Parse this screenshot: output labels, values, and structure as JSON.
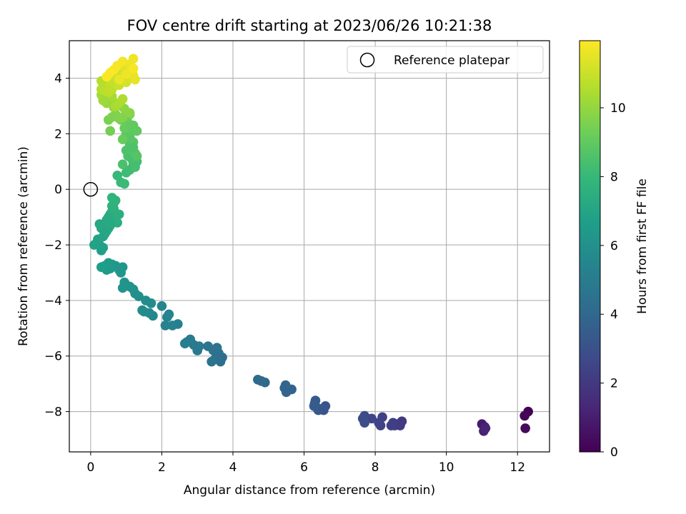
{
  "chart_data": {
    "type": "scatter",
    "title": "FOV centre drift starting at 2023/06/26 10:21:38",
    "xlabel": "Angular distance from reference (arcmin)",
    "ylabel": "Rotation from reference (arcmin)",
    "xlim": [
      -0.6,
      12.9
    ],
    "ylim": [
      -9.45,
      5.35
    ],
    "xticks": [
      0,
      2,
      4,
      6,
      8,
      10,
      12
    ],
    "yticks": [
      -8,
      -6,
      -4,
      -2,
      0,
      2,
      4
    ],
    "grid": true,
    "legend": {
      "position": "top-right",
      "entries": [
        "Reference platepar"
      ]
    },
    "reference_point": {
      "x": 0,
      "y": 0
    },
    "colorbar": {
      "label": "Hours from first FF file",
      "range": [
        0,
        11.95
      ],
      "ticks": [
        0,
        2,
        4,
        6,
        8,
        10
      ],
      "colormap": "viridis"
    },
    "colormap_stops": [
      "#440154",
      "#482878",
      "#3e4989",
      "#31688e",
      "#26828e",
      "#1f9e89",
      "#35b779",
      "#6ece58",
      "#b5de2b",
      "#fde725"
    ],
    "series": [
      {
        "x": [
          12.3,
          12.2,
          12.22,
          11.0,
          11.08,
          11.05,
          11.1
        ],
        "y": [
          -8.0,
          -8.15,
          -8.6,
          -8.45,
          -8.55,
          -8.7,
          -8.6
        ],
        "t": [
          0.0,
          0.15,
          0.3,
          0.9,
          1.0,
          1.1,
          1.2
        ]
      },
      {
        "x": [
          8.75,
          8.7,
          8.6,
          8.55,
          8.5,
          8.45,
          8.2,
          8.15,
          8.1,
          7.9,
          7.7,
          7.68,
          7.65,
          7.7
        ],
        "y": [
          -8.35,
          -8.5,
          -8.45,
          -8.5,
          -8.4,
          -8.5,
          -8.2,
          -8.5,
          -8.4,
          -8.25,
          -8.15,
          -8.3,
          -8.25,
          -8.4
        ],
        "t": [
          2.0,
          2.05,
          2.1,
          2.15,
          2.2,
          2.25,
          2.35,
          2.4,
          2.45,
          2.55,
          2.65,
          2.7,
          2.75,
          2.8
        ]
      },
      {
        "x": [
          6.6,
          6.55,
          6.5,
          6.4,
          6.35,
          6.3,
          6.32,
          6.28,
          5.65,
          5.5,
          5.45,
          5.48,
          4.9,
          4.8,
          4.7
        ],
        "y": [
          -7.8,
          -7.95,
          -7.9,
          -7.95,
          -7.85,
          -7.7,
          -7.6,
          -7.8,
          -7.2,
          -7.3,
          -7.15,
          -7.05,
          -6.95,
          -6.9,
          -6.85
        ],
        "t": [
          3.1,
          3.15,
          3.2,
          3.25,
          3.3,
          3.35,
          3.4,
          3.45,
          3.75,
          3.8,
          3.85,
          3.9,
          4.05,
          4.1,
          4.15
        ]
      },
      {
        "x": [
          3.7,
          3.65,
          3.6,
          3.5,
          3.45,
          3.55,
          3.4,
          3.3,
          3.0,
          3.05,
          2.9,
          2.8,
          2.7,
          2.65,
          2.45,
          2.3,
          2.1,
          2.15,
          2.2,
          2.0
        ],
        "y": [
          -6.05,
          -6.2,
          -5.9,
          -6.1,
          -5.8,
          -5.7,
          -6.2,
          -5.65,
          -5.8,
          -5.65,
          -5.6,
          -5.4,
          -5.5,
          -5.55,
          -4.85,
          -4.9,
          -4.9,
          -4.6,
          -4.5,
          -4.2
        ],
        "t": [
          4.3,
          4.35,
          4.4,
          4.45,
          4.5,
          4.55,
          4.6,
          4.65,
          4.8,
          4.85,
          4.9,
          4.95,
          5.0,
          5.05,
          5.2,
          5.25,
          5.3,
          5.35,
          5.4,
          5.5
        ]
      },
      {
        "x": [
          1.75,
          1.65,
          1.5,
          1.45,
          1.7,
          1.55,
          1.35,
          1.25,
          1.2,
          1.1,
          1.0,
          0.95,
          0.9,
          0.85,
          0.8,
          0.7,
          0.6,
          0.55,
          0.5,
          0.45,
          0.4,
          0.3,
          0.9
        ],
        "y": [
          -4.55,
          -4.45,
          -4.4,
          -4.35,
          -4.1,
          -4.0,
          -3.85,
          -3.75,
          -3.6,
          -3.5,
          -3.45,
          -3.35,
          -3.55,
          -3.0,
          -2.9,
          -2.75,
          -2.7,
          -2.85,
          -2.65,
          -2.9,
          -2.75,
          -2.8,
          -2.8
        ],
        "t": [
          5.6,
          5.65,
          5.7,
          5.75,
          5.8,
          5.85,
          5.9,
          5.95,
          6.0,
          6.05,
          6.1,
          6.15,
          6.2,
          6.25,
          6.3,
          6.35,
          6.4,
          6.45,
          6.5,
          6.55,
          6.6,
          6.65,
          6.25
        ]
      },
      {
        "x": [
          0.3,
          0.35,
          0.25,
          0.1,
          0.2,
          0.35,
          0.4,
          0.3,
          0.25,
          0.35,
          0.45,
          0.5,
          0.55,
          0.6,
          0.7,
          0.75,
          0.8,
          0.65,
          0.5,
          0.45,
          0.55,
          0.6,
          0.65,
          0.7,
          0.6,
          0.55
        ],
        "y": [
          -2.2,
          -2.1,
          -2.0,
          -2.0,
          -1.8,
          -1.7,
          -1.6,
          -1.4,
          -1.25,
          -1.3,
          -1.1,
          -1.0,
          -0.9,
          -0.8,
          -1.0,
          -1.2,
          -0.9,
          -0.7,
          -1.4,
          -1.5,
          -1.3,
          -0.6,
          -0.5,
          -0.4,
          -0.3,
          -1.2
        ],
        "t": [
          6.7,
          6.75,
          6.8,
          6.85,
          6.9,
          6.95,
          7.0,
          7.05,
          7.1,
          7.15,
          7.2,
          7.25,
          7.3,
          7.35,
          7.4,
          7.45,
          7.5,
          7.55,
          7.1,
          7.05,
          7.15,
          7.6,
          7.65,
          7.7,
          7.75,
          7.2
        ]
      },
      {
        "x": [
          0.75,
          0.85,
          0.95,
          1.0,
          1.1,
          1.2,
          1.3,
          1.25,
          1.15,
          1.05,
          0.9,
          1.0,
          1.1,
          1.25,
          1.3,
          1.2,
          1.1,
          1.0,
          1.15,
          1.3,
          1.2,
          1.05,
          0.95,
          0.9,
          1.0,
          1.1,
          0.85,
          1.2
        ],
        "y": [
          0.5,
          0.25,
          0.2,
          0.6,
          0.7,
          0.9,
          1.0,
          0.8,
          1.1,
          1.2,
          0.9,
          1.4,
          1.6,
          1.3,
          1.2,
          1.7,
          1.9,
          2.0,
          2.1,
          2.1,
          2.3,
          2.4,
          2.2,
          1.8,
          2.6,
          2.7,
          2.5,
          1.5
        ],
        "t": [
          8.0,
          8.05,
          8.1,
          8.15,
          8.2,
          8.25,
          8.3,
          8.35,
          8.4,
          8.45,
          8.5,
          8.55,
          8.6,
          8.65,
          8.7,
          8.75,
          8.8,
          8.85,
          8.9,
          8.95,
          9.0,
          9.05,
          9.1,
          9.15,
          9.2,
          9.25,
          9.3,
          8.55
        ]
      },
      {
        "x": [
          0.55,
          0.5,
          0.6,
          0.7,
          0.8,
          0.9,
          1.0,
          1.1,
          0.95,
          0.85,
          0.75,
          0.65,
          0.55,
          0.45,
          0.4,
          0.35,
          0.3,
          0.5,
          0.6,
          0.7,
          0.8,
          0.9
        ],
        "y": [
          2.1,
          2.5,
          2.6,
          2.7,
          2.55,
          2.6,
          2.8,
          2.75,
          2.9,
          3.0,
          3.1,
          2.95,
          3.2,
          3.1,
          3.3,
          3.2,
          3.4,
          3.5,
          3.35,
          3.0,
          3.1,
          3.25
        ],
        "t": [
          9.4,
          9.5,
          9.55,
          9.6,
          9.65,
          9.7,
          9.75,
          9.8,
          9.85,
          9.9,
          9.95,
          10.0,
          10.05,
          10.1,
          10.15,
          10.2,
          10.25,
          10.3,
          10.35,
          10.4,
          10.45,
          10.5
        ]
      },
      {
        "x": [
          0.3,
          0.35,
          0.4,
          0.45,
          0.5,
          0.55,
          0.6,
          0.65,
          0.7,
          0.75,
          0.8,
          0.85,
          0.9,
          0.95,
          1.0,
          1.05,
          1.1,
          1.15,
          1.2,
          1.25,
          0.3,
          0.4,
          0.5,
          0.6,
          0.7,
          0.8,
          0.9,
          1.0,
          1.1,
          1.2,
          0.9,
          0.75,
          0.65,
          0.55,
          0.45,
          1.2,
          1.0,
          0.8
        ],
        "y": [
          3.6,
          3.8,
          3.9,
          4.0,
          3.7,
          3.85,
          3.95,
          4.1,
          4.05,
          3.9,
          4.2,
          4.0,
          4.3,
          4.1,
          4.4,
          4.2,
          4.0,
          4.3,
          4.1,
          3.95,
          3.9,
          3.55,
          3.5,
          3.6,
          3.8,
          3.75,
          3.9,
          3.85,
          4.5,
          4.7,
          4.6,
          4.45,
          4.3,
          4.2,
          4.05,
          4.35,
          4.15,
          3.95
        ],
        "t": [
          10.6,
          10.65,
          10.7,
          10.75,
          10.8,
          10.85,
          10.9,
          10.95,
          11.0,
          11.05,
          11.1,
          11.15,
          11.2,
          11.25,
          11.3,
          11.35,
          11.4,
          11.45,
          11.5,
          11.55,
          10.6,
          10.7,
          10.75,
          10.8,
          10.9,
          11.0,
          11.1,
          11.2,
          11.6,
          11.7,
          11.75,
          11.8,
          11.85,
          11.9,
          11.9,
          11.8,
          11.7,
          11.6
        ]
      }
    ]
  }
}
